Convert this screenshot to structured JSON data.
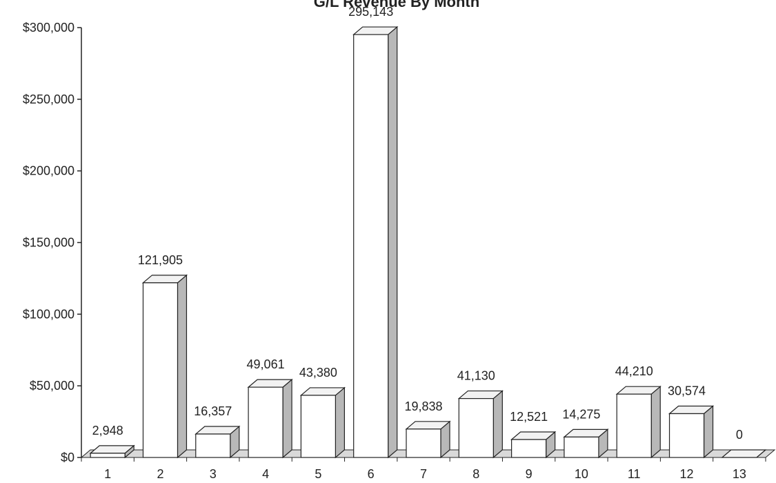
{
  "chart_data": {
    "type": "bar",
    "title": "G/L Revenue By Month",
    "xlabel": "",
    "ylabel": "",
    "categories": [
      "1",
      "2",
      "3",
      "4",
      "5",
      "6",
      "7",
      "8",
      "9",
      "10",
      "11",
      "12",
      "13"
    ],
    "values": [
      2948,
      121905,
      16357,
      49061,
      43380,
      295143,
      19838,
      41130,
      12521,
      14275,
      44210,
      30574,
      0
    ],
    "data_labels": [
      "2,948",
      "121,905",
      "16,357",
      "49,061",
      "43,380",
      "295,143",
      "19,838",
      "41,130",
      "12,521",
      "14,275",
      "44,210",
      "30,574",
      "0"
    ],
    "ylim": [
      0,
      300000
    ],
    "yticks": [
      0,
      50000,
      100000,
      150000,
      200000,
      250000,
      300000
    ],
    "ytick_labels": [
      "$0",
      "$50,000",
      "$100,000",
      "$150,000",
      "$200,000",
      "$250,000",
      "$300,000"
    ],
    "grid": false,
    "legend": "none",
    "style": "3d-column",
    "colors": {
      "bar_front": "#ffffff",
      "bar_side": "#b8b8b8",
      "bar_top": "#f2f2f2",
      "outline": "#222222"
    }
  }
}
